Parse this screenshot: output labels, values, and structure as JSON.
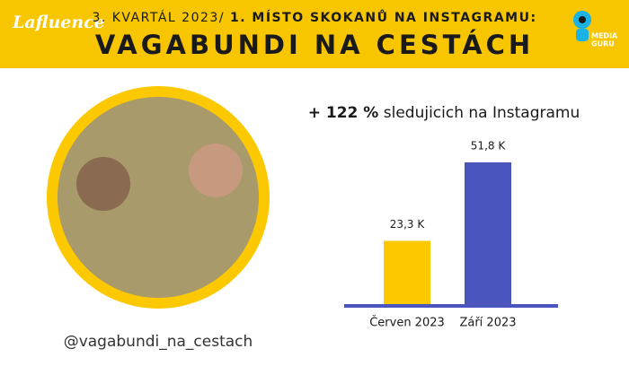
{
  "header": {
    "logo": "Lafluence",
    "kicker": "3. KVARTÁL 2023/",
    "kicker_bold": "1. MÍSTO SKOKANŮ NA INSTAGRAMU:",
    "title": "VAGABUNDI NA CESTÁCH",
    "partner_line1": "MEDIA",
    "partner_line2": "GURU"
  },
  "profile": {
    "handle": "@vagabundi_na_cestach"
  },
  "chart_data": {
    "type": "bar",
    "title_highlight": "+ 122 %",
    "title": "sledujicich na Instagramu",
    "categories": [
      "Červen 2023",
      "Září 2023"
    ],
    "values": [
      23.3,
      51.8
    ],
    "value_labels": [
      "23,3 K",
      "51,8 K"
    ],
    "colors": [
      "#fcc800",
      "#4a55bd"
    ],
    "baseline_color": "#4a55bd"
  }
}
